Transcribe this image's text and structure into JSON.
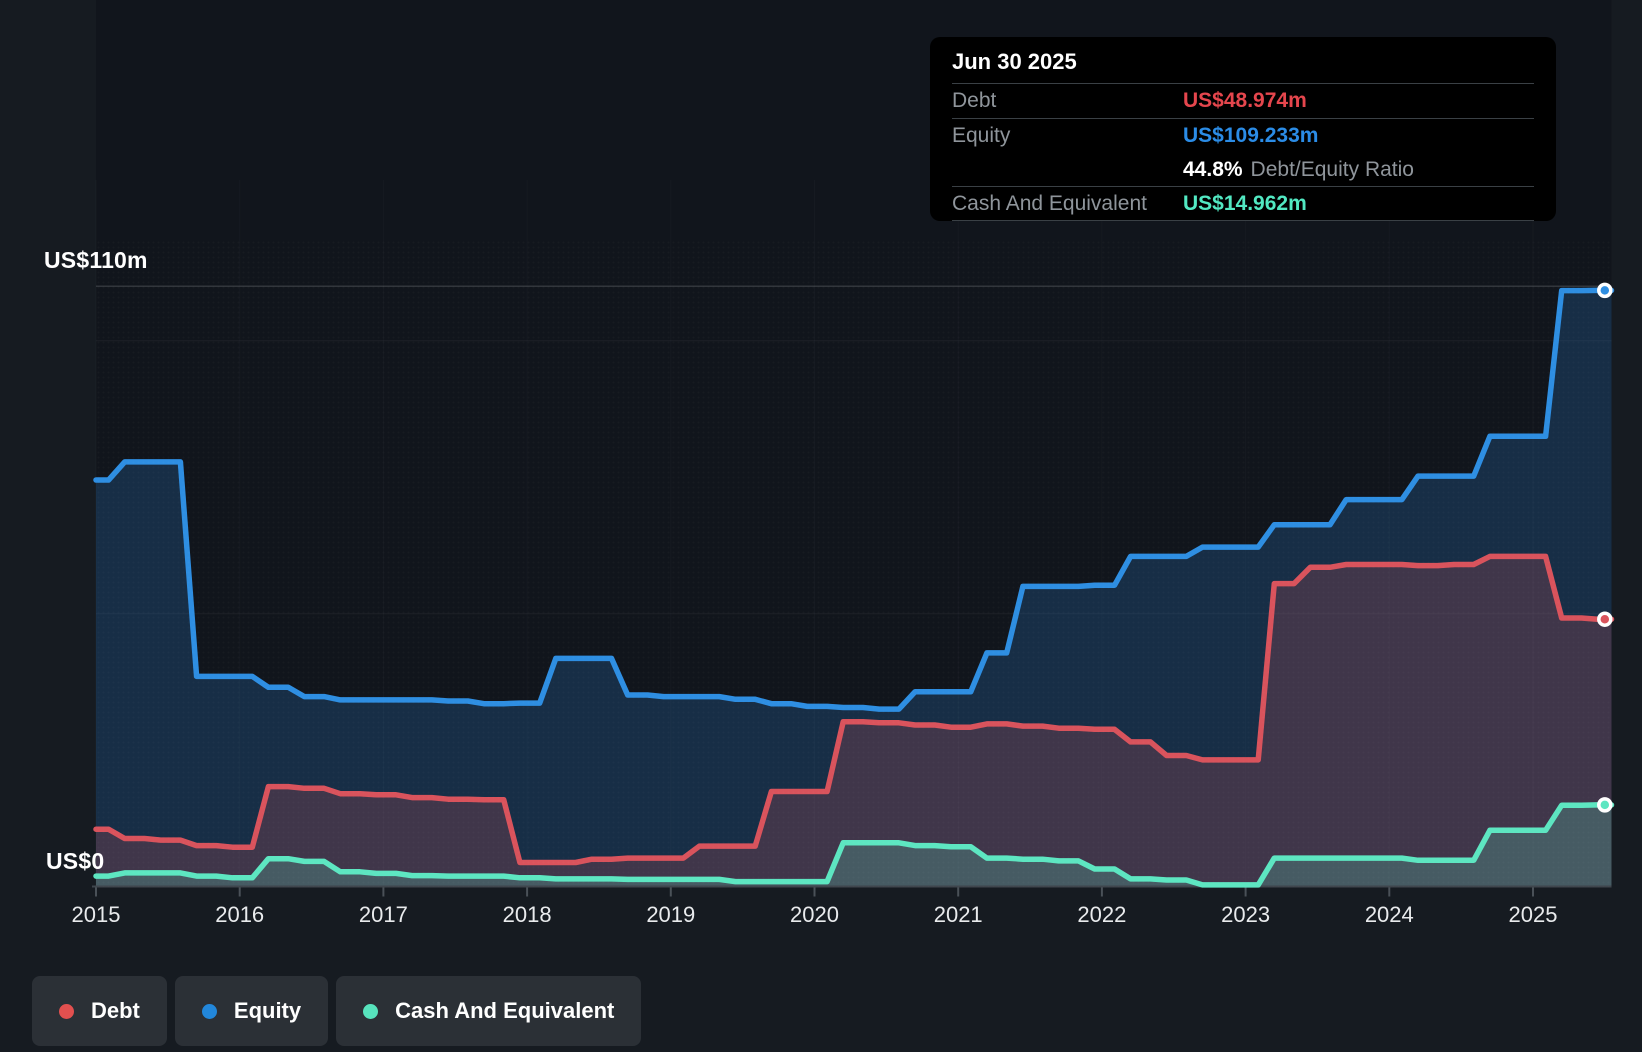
{
  "colors": {
    "page_bg": "#161b21",
    "plot_bg": "#11151c",
    "tooltip_bg": "#000000",
    "pill_bg": "#2b3036",
    "divider": "#3a4045",
    "label_gray": "#8f959b",
    "year_label": "#e9ebed",
    "white": "#ffffff",
    "debt_value": "#e5464d",
    "equity_value": "#2b8ce6",
    "cash_value": "#52e8c2",
    "axis": "#3f464d",
    "tick": "#4a5158",
    "grid_faint": "rgba(255,255,255,0.05)",
    "grid_top": "rgba(255,255,255,0.14)",
    "grid_vertical": "rgba(255,255,255,0.025)"
  },
  "y_axis": {
    "top_label": "US$110m",
    "bottom_label": "US$0"
  },
  "tooltip": {
    "date": "Jun 30 2025",
    "debt_label": "Debt",
    "debt_value": "US$48.974m",
    "equity_label": "Equity",
    "equity_value": "US$109.233m",
    "ratio_value": "44.8%",
    "ratio_label": "Debt/Equity Ratio",
    "cash_label": "Cash And Equivalent",
    "cash_value": "US$14.962m"
  },
  "legend": {
    "items": [
      {
        "label": "Debt",
        "color": "#e2504f"
      },
      {
        "label": "Equity",
        "color": "#2287db"
      },
      {
        "label": "Cash And Equivalent",
        "color": "#57e3bd"
      }
    ]
  },
  "chart_data": {
    "type": "area",
    "title": "",
    "xlabel": "",
    "ylabel": "",
    "ylabel_top": "US$110m",
    "ylabel_bottom": "US$0",
    "xlim": [
      2015,
      2025.55
    ],
    "ylim": [
      0,
      113
    ],
    "y_gridlines": [
      50,
      100,
      110
    ],
    "legend_position": "bottom",
    "x_tick_labels": [
      "2015",
      "2016",
      "2017",
      "2018",
      "2019",
      "2020",
      "2021",
      "2022",
      "2023",
      "2024",
      "2025"
    ],
    "x": [
      2015,
      2015.25,
      2015.5,
      2015.75,
      2016,
      2016.25,
      2016.5,
      2016.75,
      2017,
      2017.25,
      2017.5,
      2017.75,
      2018,
      2018.25,
      2018.5,
      2018.75,
      2019,
      2019.25,
      2019.5,
      2019.75,
      2020,
      2020.25,
      2020.5,
      2020.75,
      2021,
      2021.25,
      2021.5,
      2021.75,
      2022,
      2022.25,
      2022.5,
      2022.75,
      2023,
      2023.25,
      2023.5,
      2023.75,
      2024,
      2024.25,
      2024.5,
      2024.75,
      2025,
      2025.25,
      2025.5
    ],
    "series": [
      {
        "name": "Equity",
        "color": "#2e8ee2",
        "values": [
          74.5,
          77.8,
          77.8,
          38.5,
          38.5,
          36.5,
          34.8,
          34.2,
          34.2,
          34.2,
          34.0,
          33.5,
          33.6,
          41.8,
          41.8,
          35.1,
          34.8,
          34.8,
          34.3,
          33.5,
          33.0,
          32.8,
          32.5,
          35.7,
          35.7,
          42.8,
          55.0,
          55.0,
          55.2,
          60.5,
          60.5,
          62.2,
          62.2,
          66.3,
          66.3,
          70.9,
          70.9,
          75.2,
          75.2,
          82.5,
          82.5,
          109.2,
          109.233
        ]
      },
      {
        "name": "Debt",
        "color": "#d9535c",
        "values": [
          10.5,
          8.8,
          8.5,
          7.5,
          7.2,
          18.3,
          18.0,
          17.0,
          16.8,
          16.3,
          16.0,
          15.9,
          4.4,
          4.4,
          5.0,
          5.2,
          5.2,
          7.4,
          7.4,
          17.4,
          17.4,
          30.2,
          30.0,
          29.6,
          29.2,
          29.8,
          29.4,
          29.0,
          28.8,
          26.5,
          24.0,
          23.2,
          23.2,
          55.5,
          58.5,
          59.0,
          59.0,
          58.8,
          59.0,
          60.5,
          60.5,
          49.2,
          48.974
        ]
      },
      {
        "name": "Cash And Equivalent",
        "color": "#5de6c1",
        "values": [
          1.9,
          2.5,
          2.5,
          1.9,
          1.6,
          5.1,
          4.6,
          2.7,
          2.4,
          2.0,
          1.9,
          1.9,
          1.6,
          1.4,
          1.4,
          1.3,
          1.3,
          1.3,
          0.9,
          0.9,
          0.9,
          8.0,
          8.0,
          7.5,
          7.3,
          5.2,
          5.0,
          4.7,
          3.2,
          1.4,
          1.2,
          0.3,
          0.3,
          5.2,
          5.2,
          5.2,
          5.2,
          4.8,
          4.8,
          10.3,
          10.3,
          14.9,
          14.962
        ]
      }
    ],
    "last_point": {
      "date": "Jun 30 2025",
      "debt_musd": 48.974,
      "equity_musd": 109.233,
      "cash_and_equivalent_musd": 14.962,
      "debt_equity_ratio_pct": 44.8
    }
  }
}
